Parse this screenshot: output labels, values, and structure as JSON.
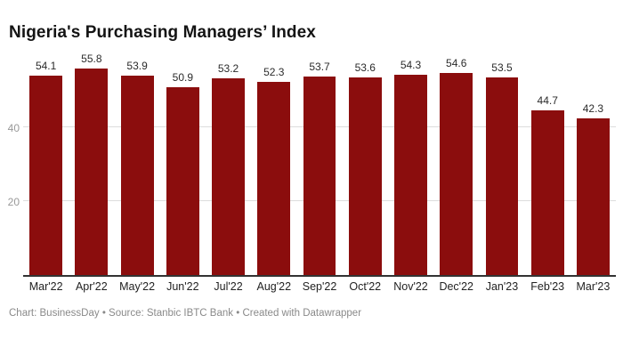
{
  "title": "Nigeria's Purchasing Managers’ Index",
  "footer": "Chart: BusinessDay • Source: Stanbic IBTC Bank • Created with Datawrapper",
  "colors": {
    "bar": "#8b0d0d",
    "title_text": "#141414",
    "value_label": "#2b2b2b",
    "x_tick_label": "#222222",
    "y_tick_label": "#999999",
    "gridline": "#dddddd",
    "axis_line": "#333333",
    "footer_text": "#8a8a8a",
    "background": "#ffffff"
  },
  "chart_data": {
    "type": "bar",
    "title": "Nigeria's Purchasing Managers’ Index",
    "categories": [
      "Mar'22",
      "Apr'22",
      "May'22",
      "Jun'22",
      "Jul'22",
      "Aug'22",
      "Sep'22",
      "Oct'22",
      "Nov'22",
      "Dec'22",
      "Jan'23",
      "Feb'23",
      "Mar'23"
    ],
    "values": [
      54.1,
      55.8,
      53.9,
      50.9,
      53.2,
      52.3,
      53.7,
      53.6,
      54.3,
      54.6,
      53.5,
      44.7,
      42.3
    ],
    "xlabel": "",
    "ylabel": "",
    "ylim": [
      0,
      60
    ],
    "yticks": [
      20,
      40
    ],
    "grid": true,
    "legend": "none",
    "value_labels_shown": true
  }
}
